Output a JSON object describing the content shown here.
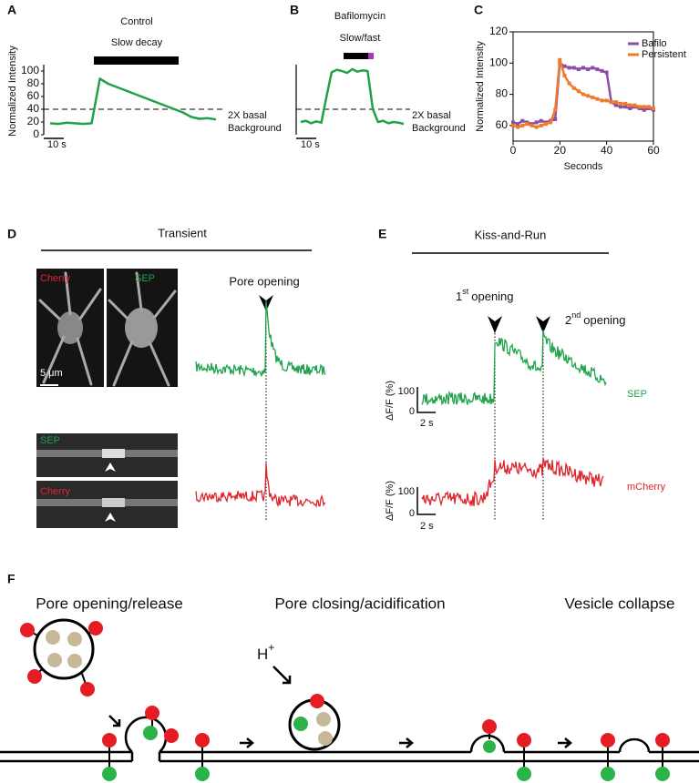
{
  "chart_data": [
    {
      "type": "line",
      "label": "A",
      "title": "Control",
      "bar_label": "Slow decay",
      "y_label": "Normalized Intensity",
      "ylim": [
        0,
        110
      ],
      "yticks": [
        0,
        20,
        40,
        60,
        80,
        100
      ],
      "xlim": [
        0,
        80
      ],
      "x": [
        0,
        4,
        8,
        12,
        16,
        20,
        24,
        28,
        32,
        36,
        40,
        44,
        48,
        52,
        56,
        60,
        64,
        68,
        72,
        76,
        80
      ],
      "values": [
        18,
        17,
        19,
        18,
        17,
        18,
        88,
        80,
        75,
        70,
        65,
        60,
        55,
        50,
        45,
        40,
        35,
        28,
        25,
        26,
        24
      ],
      "color": "#1fa24a",
      "threshold": 40,
      "threshold_labels": [
        "2X basal",
        "Background"
      ],
      "scale_bar": "10 s"
    },
    {
      "type": "line",
      "label": "B",
      "title": "Bafilomycin",
      "bar_label": "Slow/fast",
      "ylim": [
        0,
        110
      ],
      "xlim": [
        0,
        50
      ],
      "x": [
        0,
        2.5,
        5,
        7.5,
        10,
        12.5,
        15,
        17.5,
        20,
        22.5,
        25,
        27.5,
        30,
        32.5,
        35,
        37.5,
        40,
        42.5,
        45,
        47.5,
        50
      ],
      "values": [
        20,
        22,
        18,
        21,
        19,
        60,
        98,
        102,
        100,
        97,
        103,
        99,
        101,
        100,
        40,
        20,
        22,
        18,
        20,
        19,
        17
      ],
      "color": "#1fa24a",
      "threshold": 40,
      "threshold_labels": [
        "2X basal",
        "Background"
      ],
      "scale_bar": "10 s"
    },
    {
      "type": "line",
      "label": "C",
      "x_label": "Seconds",
      "y_label": "Normalized Intensity",
      "xlim": [
        0,
        60
      ],
      "xticks": [
        0,
        20,
        40,
        60
      ],
      "ylim": [
        50,
        120
      ],
      "yticks": [
        60,
        80,
        100,
        120
      ],
      "legend": "top-right",
      "x": [
        0,
        2,
        4,
        6,
        8,
        10,
        12,
        14,
        16,
        18,
        20,
        22,
        24,
        26,
        28,
        30,
        32,
        34,
        36,
        38,
        40,
        42,
        44,
        46,
        48,
        50,
        52,
        54,
        56,
        58,
        60
      ],
      "series": [
        {
          "name": "Bafilo",
          "color": "#8b4ea6",
          "values": [
            62,
            61,
            63,
            62,
            61,
            62,
            63,
            62,
            63,
            64,
            100,
            98,
            97,
            97,
            96,
            97,
            96,
            97,
            96,
            95,
            94,
            75,
            73,
            72,
            72,
            71,
            72,
            71,
            70,
            71,
            70
          ]
        },
        {
          "name": "Persistent",
          "color": "#ef7a2c",
          "values": [
            60,
            59,
            60,
            61,
            60,
            59,
            60,
            61,
            62,
            70,
            102,
            92,
            87,
            84,
            82,
            80,
            79,
            78,
            77,
            76,
            76,
            75,
            75,
            74,
            74,
            73,
            73,
            72,
            72,
            72,
            71
          ]
        }
      ]
    }
  ],
  "panels": {
    "D": {
      "label": "D",
      "title": "Transient",
      "image_labels": [
        "Cherry",
        "SEP"
      ],
      "scale_bar": "5 μm",
      "kymograph_labels": [
        "SEP",
        "Cherry"
      ],
      "event": "Pore opening"
    },
    "E": {
      "label": "E",
      "title": "Kiss-and-Run",
      "events": [
        {
          "number": "1",
          "suffix": "st",
          "text": "opening"
        },
        {
          "number": "2",
          "suffix": "nd",
          "text": "opening"
        }
      ],
      "traces": [
        {
          "name": "SEP",
          "y_label": "ΔF/F (%)",
          "scale_value": "100",
          "scale_zero": "0",
          "scale_time": "2 s"
        },
        {
          "name": "mCherry",
          "y_label": "ΔF/F (%)",
          "scale_value": "100",
          "scale_zero": "0",
          "scale_time": "2 s"
        }
      ]
    },
    "F": {
      "label": "F",
      "stages": [
        "Pore opening/release",
        "Pore closing/acidification",
        "Vesicle collapse"
      ],
      "ion": {
        "symbol": "H",
        "charge": "+"
      }
    }
  }
}
